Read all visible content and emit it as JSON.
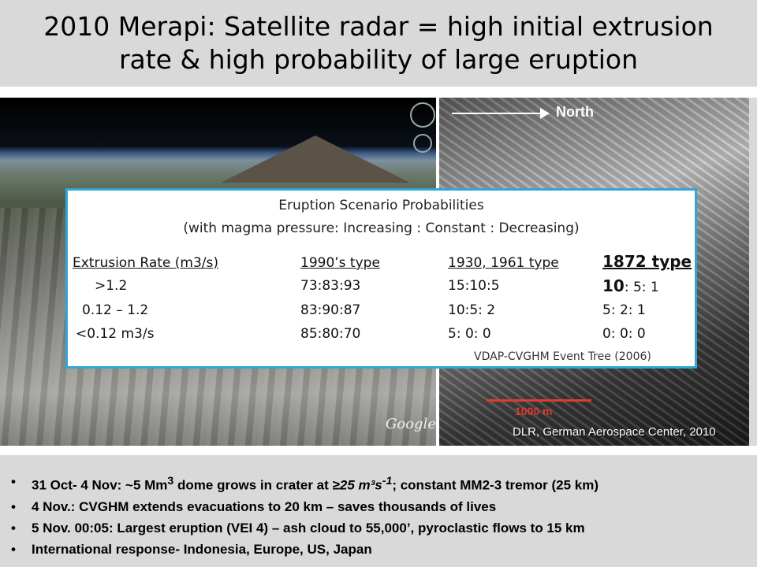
{
  "title": {
    "line1": "2010 Merapi: Satellite radar = high initial extrusion",
    "line2": "rate & high probability of large eruption"
  },
  "left_image": {
    "watermark": "Google"
  },
  "right_image": {
    "north_label": "North",
    "scale_label": "1000 m",
    "credit": "DLR, German Aerospace Center, 2010"
  },
  "table": {
    "heading": "Eruption Scenario Probabilities",
    "subheading": "(with magma pressure: Increasing : Constant : Decreasing)",
    "columns": [
      "Extrusion Rate (m3/s)",
      "1990’s type",
      "1930, 1961 type",
      "1872 type"
    ],
    "rows": [
      {
        "rate": ">1.2",
        "c1": "73:83:93",
        "c2": "15:10:5",
        "c3_bold": "10",
        "c3_rest": ": 5: 1"
      },
      {
        "rate": "0.12 – 1.2",
        "c1": "83:90:87",
        "c2": "10:5: 2",
        "c3_bold": "",
        "c3_rest": "5: 2: 1"
      },
      {
        "rate": "<0.12 m3/s",
        "c1": "85:80:70",
        "c2": "5: 0: 0",
        "c3_bold": "",
        "c3_rest": "0: 0: 0"
      }
    ],
    "source": "VDAP-CVGHM Event Tree (2006)"
  },
  "bullets": {
    "b1_pre": "31 Oct- 4 Nov:  ~5 Mm",
    "b1_sup1": "3",
    "b1_mid": " dome grows in crater at ",
    "b1_rate": "≥25 m³s",
    "b1_sup2": "-1",
    "b1_post": "; constant MM2-3 tremor (25 km)",
    "b2": "4 Nov.:  CVGHM extends evacuations to 20 km – saves  thousands of lives",
    "b3": "5 Nov. 00:05:  Largest eruption (VEI 4) – ash cloud to 55,000’, pyroclastic flows to 15 km",
    "b4": "International response- Indonesia, Europe, US, Japan"
  }
}
